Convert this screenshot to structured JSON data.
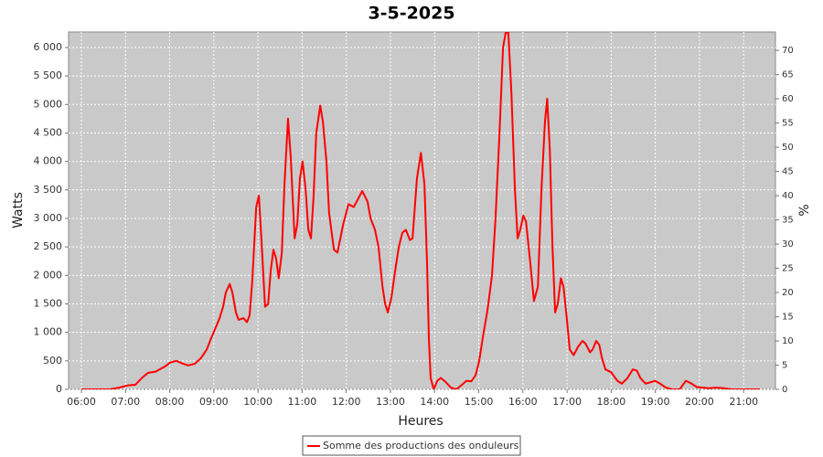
{
  "chart_data": {
    "type": "line",
    "title": "3-5-2025",
    "x_label": "Heures",
    "y_label": "Watts",
    "y2_label": "%",
    "x": [
      6.0,
      6.64,
      6.85,
      7.06,
      7.22,
      7.37,
      7.51,
      7.68,
      7.89,
      8.01,
      8.15,
      8.3,
      8.42,
      8.57,
      8.71,
      8.84,
      8.94,
      9.05,
      9.13,
      9.21,
      9.27,
      9.36,
      9.42,
      9.5,
      9.56,
      9.67,
      9.75,
      9.81,
      9.87,
      9.96,
      10.02,
      10.08,
      10.16,
      10.23,
      10.29,
      10.35,
      10.41,
      10.47,
      10.54,
      10.6,
      10.68,
      10.74,
      10.83,
      10.89,
      10.95,
      11.01,
      11.08,
      11.14,
      11.2,
      11.26,
      11.32,
      11.41,
      11.47,
      11.55,
      11.61,
      11.72,
      11.8,
      11.93,
      12.05,
      12.17,
      12.36,
      12.48,
      12.55,
      12.65,
      12.73,
      12.82,
      12.88,
      12.94,
      13.02,
      13.11,
      13.19,
      13.27,
      13.35,
      13.44,
      13.5,
      13.6,
      13.69,
      13.77,
      13.83,
      13.87,
      13.91,
      13.98,
      14.06,
      14.14,
      14.25,
      14.37,
      14.49,
      14.62,
      14.72,
      14.83,
      14.93,
      15.01,
      15.09,
      15.2,
      15.3,
      15.38,
      15.47,
      15.55,
      15.61,
      15.67,
      15.74,
      15.82,
      15.88,
      15.94,
      16.01,
      16.07,
      16.17,
      16.25,
      16.34,
      16.42,
      16.5,
      16.55,
      16.61,
      16.67,
      16.73,
      16.79,
      16.86,
      16.92,
      17.0,
      17.06,
      17.15,
      17.25,
      17.35,
      17.42,
      17.52,
      17.58,
      17.66,
      17.73,
      17.79,
      17.87,
      18.0,
      18.14,
      18.24,
      18.37,
      18.49,
      18.58,
      18.66,
      18.78,
      18.87,
      18.99,
      19.11,
      19.24,
      19.38,
      19.55,
      19.69,
      19.8,
      19.94,
      20.21,
      20.38,
      20.54,
      20.73,
      21.37
    ],
    "series": [
      {
        "name": "Somme des productions des onduleurs",
        "color": "#ff0000",
        "values": [
          0,
          0,
          30,
          70,
          80,
          200,
          290,
          310,
          400,
          470,
          500,
          450,
          420,
          450,
          550,
          700,
          900,
          1100,
          1250,
          1450,
          1700,
          1850,
          1700,
          1350,
          1220,
          1250,
          1180,
          1300,
          1900,
          3200,
          3400,
          2600,
          1450,
          1500,
          2100,
          2450,
          2300,
          1950,
          2400,
          3600,
          4750,
          4100,
          2650,
          2900,
          3700,
          4000,
          3500,
          2800,
          2650,
          3400,
          4500,
          4980,
          4700,
          4000,
          3100,
          2450,
          2400,
          2900,
          3250,
          3200,
          3480,
          3300,
          3000,
          2800,
          2500,
          1800,
          1500,
          1350,
          1600,
          2100,
          2500,
          2750,
          2800,
          2620,
          2650,
          3700,
          4150,
          3600,
          2200,
          900,
          200,
          0,
          150,
          200,
          130,
          30,
          0,
          80,
          150,
          140,
          250,
          500,
          900,
          1400,
          2000,
          3000,
          4500,
          6000,
          6260,
          6260,
          5200,
          3500,
          2650,
          2800,
          3050,
          2950,
          2200,
          1550,
          1800,
          3500,
          4700,
          5100,
          4200,
          2500,
          1350,
          1500,
          1950,
          1800,
          1200,
          700,
          600,
          750,
          850,
          800,
          650,
          700,
          850,
          780,
          550,
          350,
          300,
          150,
          100,
          200,
          350,
          330,
          200,
          100,
          120,
          150,
          100,
          30,
          0,
          0,
          150,
          110,
          40,
          20,
          30,
          20,
          0,
          0
        ]
      }
    ],
    "xlim": [
      5.71,
      21.72
    ],
    "xticks": [
      {
        "value": 6,
        "label": "06:00"
      },
      {
        "value": 7,
        "label": "07:00"
      },
      {
        "value": 8,
        "label": "08:00"
      },
      {
        "value": 9,
        "label": "09:00"
      },
      {
        "value": 10,
        "label": "10:00"
      },
      {
        "value": 11,
        "label": "11:00"
      },
      {
        "value": 12,
        "label": "12:00"
      },
      {
        "value": 13,
        "label": "13:00"
      },
      {
        "value": 14,
        "label": "14:00"
      },
      {
        "value": 15,
        "label": "15:00"
      },
      {
        "value": 16,
        "label": "16:00"
      },
      {
        "value": 17,
        "label": "17:00"
      },
      {
        "value": 18,
        "label": "18:00"
      },
      {
        "value": 19,
        "label": "19:00"
      },
      {
        "value": 20,
        "label": "20:00"
      },
      {
        "value": 21,
        "label": "21:00"
      }
    ],
    "ylim": [
      0,
      6272
    ],
    "yticks": [
      0,
      500,
      {
        "value": 1000,
        "label": "1 000"
      },
      {
        "value": 1500,
        "label": "1 500"
      },
      {
        "value": 2000,
        "label": "2 000"
      },
      {
        "value": 2500,
        "label": "2 500"
      },
      {
        "value": 3000,
        "label": "3 000"
      },
      {
        "value": 3500,
        "label": "3 500"
      },
      {
        "value": 4000,
        "label": "4 000"
      },
      {
        "value": 4500,
        "label": "4 500"
      },
      {
        "value": 5000,
        "label": "5 000"
      },
      {
        "value": 5500,
        "label": "5 500"
      },
      {
        "value": 6000,
        "label": "6 000"
      }
    ],
    "y2lim": [
      0,
      73.8
    ],
    "y2ticks": [
      0,
      5,
      10,
      15,
      20,
      25,
      30,
      35,
      40,
      45,
      50,
      55,
      60,
      65,
      70
    ],
    "grid": true,
    "legend": "bottom"
  }
}
